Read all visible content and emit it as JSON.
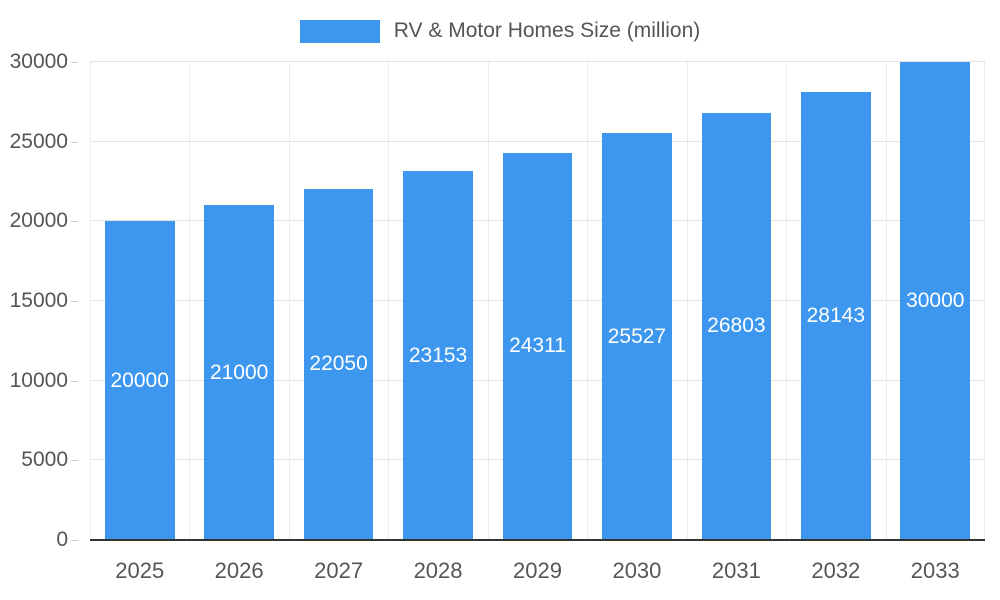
{
  "legend": {
    "swatch_icon": "legend-color-swatch"
  },
  "chart_data": {
    "type": "bar",
    "title": "RV & Motor Homes Size (million)",
    "categories": [
      "2025",
      "2026",
      "2027",
      "2028",
      "2029",
      "2030",
      "2031",
      "2032",
      "2033"
    ],
    "values": [
      20000,
      21000,
      22050,
      23153,
      24311,
      25527,
      26803,
      28143,
      30000
    ],
    "xlabel": "",
    "ylabel": "",
    "ylim": [
      0,
      30000
    ],
    "yticks": [
      0,
      5000,
      10000,
      15000,
      20000,
      25000,
      30000
    ],
    "grid": true,
    "legend_position": "top-center",
    "bar_color": "#3d97ee",
    "bar_label_color": "#ffffff",
    "axis_text_color": "#555555",
    "grid_color": "#e2e2e2",
    "baseline_color": "#333333"
  }
}
